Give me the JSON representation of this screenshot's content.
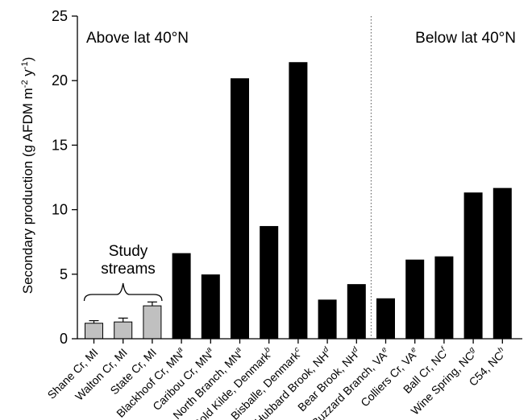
{
  "chart_data": {
    "type": "bar",
    "ylabel": {
      "prefix": "Secondary production (g AFDM m",
      "sup1": "-2",
      "mid": " y",
      "sup2": "-1",
      "suffix": ")"
    },
    "ylim": [
      0,
      25
    ],
    "yticks": [
      "0",
      "5",
      "10",
      "15",
      "20",
      "25"
    ],
    "grid": false,
    "regions": [
      {
        "label": "Above lat 40°N"
      },
      {
        "label": "Below lat 40°N"
      }
    ],
    "annotation": {
      "lines": [
        "Study",
        "streams"
      ]
    },
    "categories": [
      {
        "label": "Shane Cr, MI",
        "sup": ""
      },
      {
        "label": "Walton Cr, MI",
        "sup": ""
      },
      {
        "label": "State Cr, MI",
        "sup": ""
      },
      {
        "label": "Blackhoof Cr, MN",
        "sup": "a"
      },
      {
        "label": "Caribou Cr, MN",
        "sup": "a"
      },
      {
        "label": "North Branch, MN",
        "sup": "a"
      },
      {
        "label": "Rold Kilde, Denmark",
        "sup": "b"
      },
      {
        "label": "Bisballe, Denmark",
        "sup": "c"
      },
      {
        "label": "Hubbard Brook, NH",
        "sup": "d"
      },
      {
        "label": "Bear Brook, NH",
        "sup": "d"
      },
      {
        "label": "Buzzard Branch, VA",
        "sup": "e"
      },
      {
        "label": "Colliers Cr, VA",
        "sup": "e"
      },
      {
        "label": "Ball Cr, NC",
        "sup": "f"
      },
      {
        "label": "Wine Spring, NC",
        "sup": "g"
      },
      {
        "label": "C54, NC",
        "sup": "h"
      }
    ],
    "values": [
      1.2,
      1.3,
      2.55,
      6.6,
      4.95,
      20.15,
      8.7,
      21.4,
      3.0,
      4.2,
      3.1,
      6.1,
      6.35,
      11.3,
      11.65
    ],
    "errors": [
      0.2,
      0.3,
      0.3,
      null,
      null,
      null,
      null,
      null,
      null,
      null,
      null,
      null,
      null,
      null,
      null
    ],
    "study_bar_color": "#c0c0c0",
    "other_bar_color": "#000000",
    "divider_style": "dotted"
  }
}
